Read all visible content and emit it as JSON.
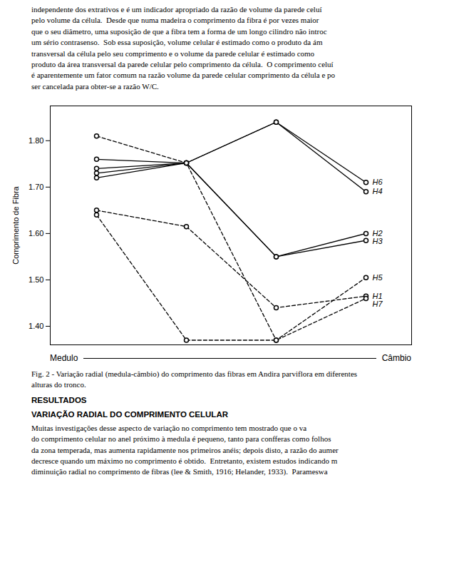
{
  "chart_data": {
    "type": "line",
    "ylabel": "Comprimento de Fibra",
    "xlabel_left": "Medulo",
    "xlabel_right": "Câmbio",
    "categories": [
      null,
      null,
      null,
      null
    ],
    "ylim": [
      1.36,
      1.875
    ],
    "yticks": [
      {
        "value": 1.4,
        "label": "1.40"
      },
      {
        "value": 1.5,
        "label": "1.50"
      },
      {
        "value": 1.6,
        "label": "1.60"
      },
      {
        "value": 1.7,
        "label": "1.70"
      },
      {
        "value": 1.8,
        "label": "1.80"
      }
    ],
    "tick_labels": "y",
    "grid": false,
    "marker": "circle",
    "series": [
      {
        "name": "H6",
        "color": "#000000",
        "line_style": "solid",
        "values": [
          1.76,
          1.752,
          1.84,
          1.71
        ]
      },
      {
        "name": "H4",
        "color": "#000000",
        "line_style": "solid",
        "values": [
          1.74,
          1.752,
          1.84,
          1.69
        ]
      },
      {
        "name": "H2",
        "color": "#000000",
        "line_style": "solid",
        "values": [
          1.73,
          1.752,
          1.55,
          1.6
        ]
      },
      {
        "name": "H3",
        "color": "#000000",
        "line_style": "solid",
        "values": [
          1.72,
          1.752,
          1.55,
          1.585
        ]
      },
      {
        "name": "H5",
        "color": "#000000",
        "line_style": "dashed",
        "values": [
          1.81,
          1.752,
          1.37,
          1.505
        ]
      },
      {
        "name": "H1",
        "color": "#000000",
        "line_style": "dashed",
        "values": [
          1.65,
          1.615,
          1.44,
          1.465
        ]
      },
      {
        "name": "H7",
        "color": "#000000",
        "line_style": "dashed",
        "values": [
          1.64,
          1.37,
          1.37,
          1.46
        ]
      }
    ],
    "text_above": "independente dos extrativos e é um indicador apropriado da razão de volume da parede celuí\npelo volume da célula.  Desde que numa madeira o comprimento da fibra é por vezes maior\nque o seu diâmetro, uma suposição de que a fibra tem a forma de um longo cilindro não introc\num sério contrasenso.  Sob essa suposição, volume celular é estimado como o produto da ám\ntransversal da célula pelo seu comprimento e o volume da parede celular é estimado como\nproduto da área transversal da parede celular pelo comprimento da célula.  O comprimento celuí\né aparentemente um fator comum na razão volume da parede celular comprimento da célula e po\nser cancelada para obter-se a razão W/C.",
    "caption": [
      "Fig. 2 - Variação radial (medula-câmbio) do comprimento das fibras em Andira parviflora em diferentes",
      "alturas do tronco."
    ],
    "headings": [
      "RESULTADOS",
      "VARIAÇÃO RADIAL DO COMPRIMENTO CELULAR"
    ],
    "text_below": "Muitas investigações desse aspecto de variação no comprimento tem mostrado que o va\ndo comprimento celular no anel próximo à medula é pequeno, tanto para confferas como folhos\nda zona temperada, mas aumenta rapidamente nos primeiros anéis; depois disto, a razão do aumer\ndecresce quando um máximo no comprimento é obtido.  Entretanto, existem estudos indicando m\ndiminuição radial no comprimento de fibras (lee & Smith, 1916; Helander, 1933).  Parameswa"
  }
}
